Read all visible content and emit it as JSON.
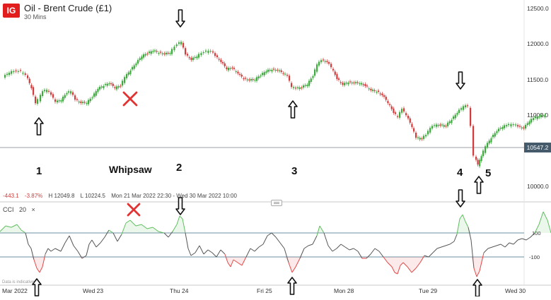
{
  "header": {
    "logo_text": "IG",
    "title": "Oil - Brent Crude (£1)",
    "timeframe": "30 Mins"
  },
  "stats": {
    "change": "-443.1",
    "change_pct": "-3.87%",
    "high": "H 12049.8",
    "low": "L 10224.5",
    "range": "Mon 21 Mar 2022 22:30 - Wed 30 Mar 2022 10:00"
  },
  "indicator": {
    "name": "CCI",
    "period": "20",
    "close_symbol": "×",
    "upper_level_label": "100",
    "lower_level_label": "-100"
  },
  "price_axis": {
    "ticks": [
      "12500.0",
      "12000.0",
      "11500.0",
      "11000.0",
      "10000.0"
    ],
    "current_price": "10547.2"
  },
  "time_axis": {
    "ticks": [
      "Mar 2022",
      "Wed 23",
      "Thu 24",
      "Fri 25",
      "Mon 28",
      "Tue 29",
      "Wed 30"
    ]
  },
  "annotations": {
    "labels": [
      "1",
      "Whipsaw",
      "2",
      "3",
      "4",
      "5"
    ],
    "arrow_up_icon": "up-arrow-icon",
    "arrow_down_icon": "down-arrow-icon",
    "cross_icon": "red-x-icon"
  },
  "disclaimer": "Data is indicative",
  "colors": {
    "up_candle": "#3fa83f",
    "down_candle": "#d23b3b",
    "cci_line": "#555555",
    "cci_overbought": "#5fbf5f",
    "cci_oversold": "#e34848",
    "level_line": "#6b8fa3",
    "brand_red": "#e11d1d",
    "price_tag_bg": "#455a6b"
  }
}
